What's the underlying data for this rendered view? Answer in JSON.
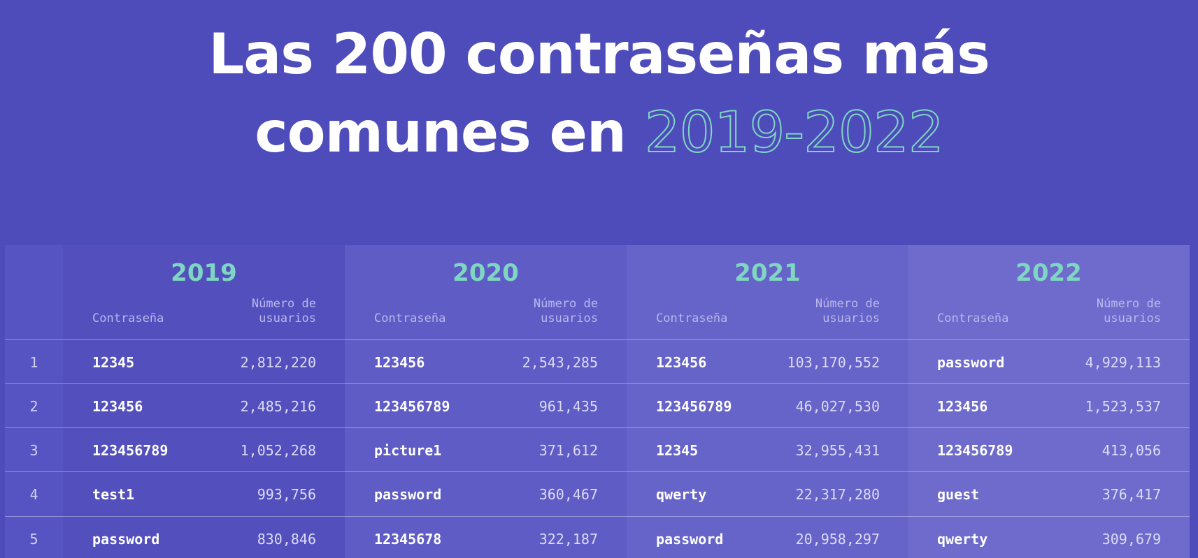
{
  "title": {
    "line1": "Las 200 contraseñas más",
    "line2_prefix": "comunes en ",
    "line2_accent": "2019-2022"
  },
  "colors": {
    "background": "#4e4cbb",
    "accent": "#7fd6c2"
  },
  "table": {
    "header_password": "Contraseña",
    "header_users_line1": "Número de",
    "header_users_line2": "usuarios",
    "years": [
      {
        "year": "2019",
        "rows": [
          {
            "password": "12345",
            "users": "2,812,220"
          },
          {
            "password": "123456",
            "users": "2,485,216"
          },
          {
            "password": "123456789",
            "users": "1,052,268"
          },
          {
            "password": "test1",
            "users": "993,756"
          },
          {
            "password": "password",
            "users": "830,846"
          }
        ]
      },
      {
        "year": "2020",
        "rows": [
          {
            "password": "123456",
            "users": "2,543,285"
          },
          {
            "password": "123456789",
            "users": "961,435"
          },
          {
            "password": "picture1",
            "users": "371,612"
          },
          {
            "password": "password",
            "users": "360,467"
          },
          {
            "password": "12345678",
            "users": "322,187"
          }
        ]
      },
      {
        "year": "2021",
        "rows": [
          {
            "password": "123456",
            "users": "103,170,552"
          },
          {
            "password": "123456789",
            "users": "46,027,530"
          },
          {
            "password": "12345",
            "users": "32,955,431"
          },
          {
            "password": "qwerty",
            "users": "22,317,280"
          },
          {
            "password": "password",
            "users": "20,958,297"
          }
        ]
      },
      {
        "year": "2022",
        "rows": [
          {
            "password": "password",
            "users": "4,929,113"
          },
          {
            "password": "123456",
            "users": "1,523,537"
          },
          {
            "password": "123456789",
            "users": "413,056"
          },
          {
            "password": "guest",
            "users": "376,417"
          },
          {
            "password": "qwerty",
            "users": "309,679"
          }
        ]
      }
    ],
    "ranks": [
      "1",
      "2",
      "3",
      "4",
      "5"
    ]
  }
}
